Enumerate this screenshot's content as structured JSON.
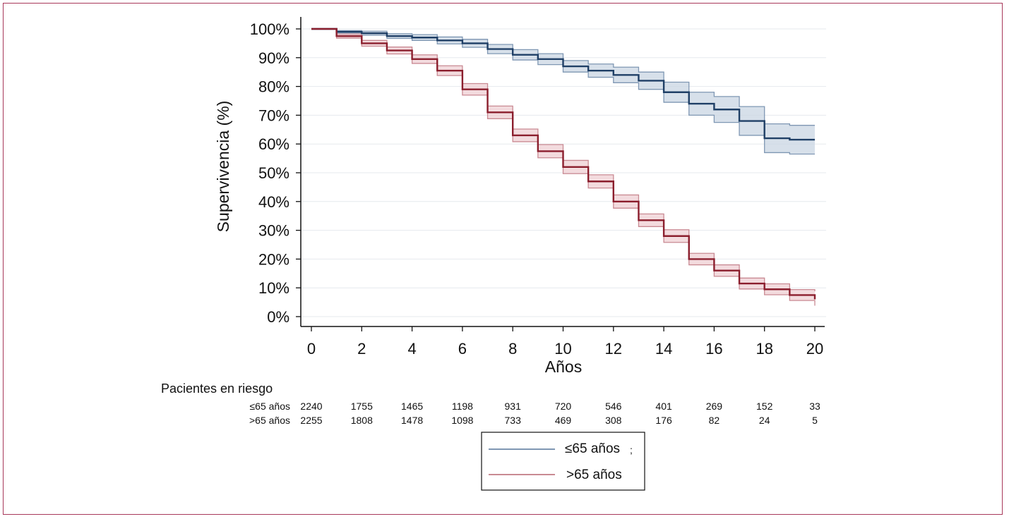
{
  "colors": {
    "group_le65": "#1f3f66",
    "group_le65_band": "#c9d6e3",
    "group_le65_band_edge": "#7f97b3",
    "group_gt65": "#8b1e2d",
    "group_gt65_band": "#efcfd3",
    "group_gt65_band_edge": "#c98a93",
    "frame": "#a8385a",
    "grid": "#e6e9ee"
  },
  "chart_data": {
    "type": "line",
    "title": "",
    "xlabel": "Años",
    "ylabel": "Supervivencia (%)",
    "xlim": [
      0,
      20
    ],
    "ylim": [
      0,
      100
    ],
    "x_ticks": [
      0,
      2,
      4,
      6,
      8,
      10,
      12,
      14,
      16,
      18,
      20
    ],
    "y_ticks": [
      0,
      10,
      20,
      30,
      40,
      50,
      60,
      70,
      80,
      90,
      100
    ],
    "y_tick_labels": [
      "0%",
      "10%",
      "20%",
      "30%",
      "40%",
      "50%",
      "60%",
      "70%",
      "80%",
      "90%",
      "100%"
    ],
    "grid": "horizontal",
    "legend_position": "bottom-center",
    "series": [
      {
        "name": "≤65 años",
        "x": [
          0,
          1,
          2,
          3,
          4,
          5,
          6,
          7,
          8,
          9,
          10,
          11,
          12,
          13,
          14,
          15,
          16,
          17,
          18,
          19,
          20
        ],
        "y": [
          100,
          99,
          98.5,
          97.5,
          97,
          96,
          95,
          93,
          91,
          89.5,
          87,
          85.5,
          84,
          82,
          78,
          74,
          72,
          68,
          62,
          61.5,
          61.5
        ],
        "ci_lower": [
          100,
          98.6,
          97.8,
          96.7,
          96,
          94.8,
          93.6,
          91.4,
          89.2,
          87.6,
          85,
          83.2,
          81.3,
          79,
          74.5,
          70,
          67.5,
          63,
          57,
          56.5,
          56.5
        ],
        "ci_upper": [
          100,
          99.4,
          99.2,
          98.3,
          98,
          97.2,
          96.4,
          94.6,
          92.8,
          91.4,
          89,
          87.8,
          86.7,
          85,
          81.5,
          78,
          76.5,
          73,
          67,
          66.5,
          66.5
        ]
      },
      {
        "name": ">65 años",
        "x": [
          0,
          1,
          2,
          3,
          4,
          5,
          6,
          7,
          8,
          9,
          10,
          11,
          12,
          13,
          14,
          15,
          16,
          17,
          18,
          19,
          20
        ],
        "y": [
          100,
          97.5,
          95,
          92.5,
          89.5,
          85.5,
          79,
          71,
          63,
          57.5,
          52,
          47,
          40,
          33.5,
          28,
          20,
          16,
          11.5,
          9.5,
          7.5,
          6
        ],
        "ci_lower": [
          100,
          96.8,
          94,
          91.3,
          88,
          83.8,
          77,
          68.8,
          60.8,
          55.2,
          49.7,
          44.7,
          37.7,
          31.3,
          25.8,
          18,
          14,
          9.6,
          7.6,
          5.6,
          3.8
        ],
        "ci_upper": [
          100,
          98.2,
          96,
          93.7,
          91,
          87.2,
          81,
          73.2,
          65.2,
          59.8,
          54.3,
          49.3,
          42.3,
          35.7,
          30.2,
          22,
          18,
          13.4,
          11.4,
          9.4,
          8.8
        ]
      }
    ]
  },
  "risk_table": {
    "title": "Pacientes en riesgo",
    "rows": [
      {
        "label": "≤65 años",
        "values": [
          "2240",
          "1755",
          "1465",
          "1198",
          "931",
          "720",
          "546",
          "401",
          "269",
          "152",
          "33"
        ]
      },
      {
        "label": ">65 años",
        "values": [
          "2255",
          "1808",
          "1478",
          "1098",
          "733",
          "469",
          "308",
          "176",
          "82",
          "24",
          "5"
        ]
      }
    ]
  },
  "legend": {
    "items": [
      {
        "label": "≤65 años",
        "extra": ";"
      },
      {
        "label": ">65 años"
      }
    ]
  }
}
